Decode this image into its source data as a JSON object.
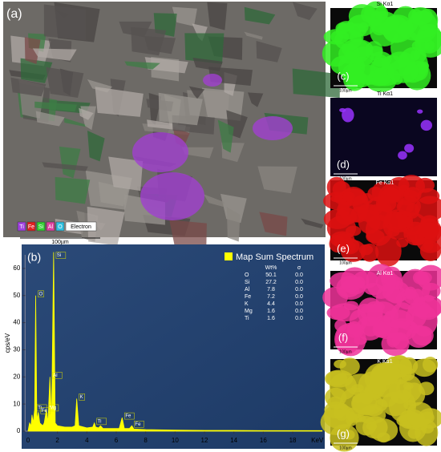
{
  "panel_a": {
    "label": "(a)",
    "legend": [
      {
        "text": "Ti",
        "color": "#a040e0"
      },
      {
        "text": "Fe",
        "color": "#e02020"
      },
      {
        "text": "Si",
        "color": "#30d030"
      },
      {
        "text": "Al",
        "color": "#e040a0"
      },
      {
        "text": "O",
        "color": "#30c0e0"
      },
      {
        "text": "Electron",
        "color": "#ffffff"
      }
    ],
    "scale": "100µm"
  },
  "maps": [
    {
      "title": "Si Kα1",
      "label": "(c)",
      "scale": "100µm",
      "color": "#33ee22"
    },
    {
      "title": "Ti Kα1",
      "label": "(d)",
      "scale": "100µm",
      "color": "#9933ff"
    },
    {
      "title": "Fe Kα1",
      "label": "(e)",
      "scale": "100µm",
      "color": "#dd1111"
    },
    {
      "title": "Al Kα1",
      "label": "(f)",
      "scale": "100µm",
      "color": "#ee3399"
    },
    {
      "title": "K Kα1",
      "label": "(g)",
      "scale": "100µm",
      "color": "#c8c020"
    }
  ],
  "chart_data": {
    "type": "line",
    "label": "(b)",
    "ylabel": "cps/eV",
    "xlabel": "KeV",
    "legend": "Map Sum Spectrum",
    "color": "#ffff00",
    "xlim": [
      -0.2,
      20
    ],
    "ylim": [
      0,
      65
    ],
    "xticks": [
      0,
      2,
      4,
      6,
      8,
      10,
      12,
      14,
      16,
      18
    ],
    "yticks": [
      0,
      10,
      20,
      30,
      40,
      50,
      60
    ],
    "x": [
      0,
      0.1,
      0.2,
      0.27,
      0.35,
      0.45,
      0.52,
      0.6,
      0.7,
      0.8,
      1.0,
      1.1,
      1.25,
      1.35,
      1.49,
      1.6,
      1.74,
      1.85,
      2.0,
      2.5,
      3.0,
      3.2,
      3.31,
      3.45,
      4.0,
      4.4,
      4.51,
      4.6,
      4.8,
      4.93,
      5.1,
      6.2,
      6.4,
      6.55,
      6.9,
      7.06,
      7.2,
      8,
      10,
      12,
      14,
      16,
      18,
      20
    ],
    "values": [
      0,
      3,
      2,
      6,
      3,
      8,
      50,
      4,
      7,
      3,
      2,
      3,
      8,
      3,
      20,
      4,
      66,
      3,
      2,
      1.5,
      1.5,
      2,
      12,
      2,
      1.2,
      1.5,
      3,
      1.5,
      1.2,
      2,
      1,
      1,
      5,
      1,
      1,
      2,
      0.8,
      0.6,
      0.4,
      0.3,
      0.3,
      0.2,
      0.2,
      0.2
    ],
    "peak_labels": [
      {
        "text": "Si",
        "x": 1.74,
        "y": 66
      },
      {
        "text": "O",
        "x": 0.52,
        "y": 50
      },
      {
        "text": "Al",
        "x": 1.49,
        "y": 20
      },
      {
        "text": "K",
        "x": 3.31,
        "y": 12
      },
      {
        "text": "Ti",
        "x": 0.45,
        "y": 8
      },
      {
        "text": "Mg",
        "x": 1.25,
        "y": 8
      },
      {
        "text": "Fe",
        "x": 0.7,
        "y": 7
      },
      {
        "text": "Ti",
        "x": 4.51,
        "y": 3
      },
      {
        "text": "Fe",
        "x": 6.4,
        "y": 5
      },
      {
        "text": "Fe",
        "x": 7.06,
        "y": 2
      }
    ],
    "table": {
      "headers": [
        "Wt%",
        "σ"
      ],
      "rows": [
        [
          "O",
          "50.1",
          "0.0"
        ],
        [
          "Si",
          "27.2",
          "0.0"
        ],
        [
          "Al",
          "7.8",
          "0.0"
        ],
        [
          "Fe",
          "7.2",
          "0.0"
        ],
        [
          "K",
          "4.4",
          "0.0"
        ],
        [
          "Mg",
          "1.6",
          "0.0"
        ],
        [
          "Ti",
          "1.6",
          "0.0"
        ]
      ]
    }
  }
}
